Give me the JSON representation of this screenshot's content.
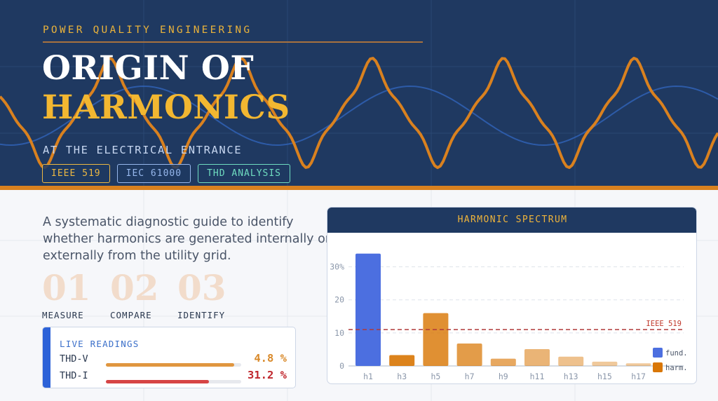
{
  "hero": {
    "kicker": "POWER QUALITY ENGINEERING",
    "title_line1": "ORIGIN OF",
    "title_line2": "HARMONICS",
    "subtitle": "AT THE ELECTRICAL ENTRANCE",
    "tags": [
      "IEEE 519",
      "IEC 61000",
      "THD ANALYSIS"
    ]
  },
  "description": "A systematic diagnostic guide to identify whether harmonics are generated internally or externally from the utility grid.",
  "steps": [
    {
      "num": "01",
      "label": "MEASURE"
    },
    {
      "num": "02",
      "label": "COMPARE"
    },
    {
      "num": "03",
      "label": "IDENTIFY"
    }
  ],
  "readings": {
    "title": "LIVE READINGS",
    "items": [
      {
        "label": "THD-V",
        "value": "4.8 %",
        "fill": 0.95,
        "color": "#d98a2b",
        "bar_color": "#e0963f"
      },
      {
        "label": "THD-I",
        "value": "31.2 %",
        "fill": 0.76,
        "color": "#c0272d",
        "bar_color": "#d64545"
      }
    ]
  },
  "colors": {
    "navy": "#1f3961",
    "gold": "#f2b731",
    "orange": "#d9811f",
    "fundamental": "#4c6fe0",
    "harmonic": "#d97706"
  },
  "chart_data": {
    "type": "bar",
    "title": "HARMONIC SPECTRUM",
    "categories": [
      "h1",
      "h3",
      "h5",
      "h7",
      "h9",
      "h11",
      "h13",
      "h15",
      "h17"
    ],
    "values": [
      34,
      3.3,
      16,
      6.8,
      2.2,
      5.1,
      2.8,
      1.3,
      0.8
    ],
    "fundamental_index": 0,
    "ylim": [
      0,
      35
    ],
    "yticks": [
      0,
      10,
      20,
      30
    ],
    "ytick_labels": [
      "0",
      "10",
      "20",
      "30%"
    ],
    "grid": true,
    "reference_line": {
      "value": 11,
      "label": "IEEE 519"
    },
    "legend": {
      "position": "bottom-right",
      "entries": [
        {
          "label": "fund.",
          "color": "#4c6fe0"
        },
        {
          "label": "harm.",
          "color": "#d97706"
        }
      ]
    }
  }
}
